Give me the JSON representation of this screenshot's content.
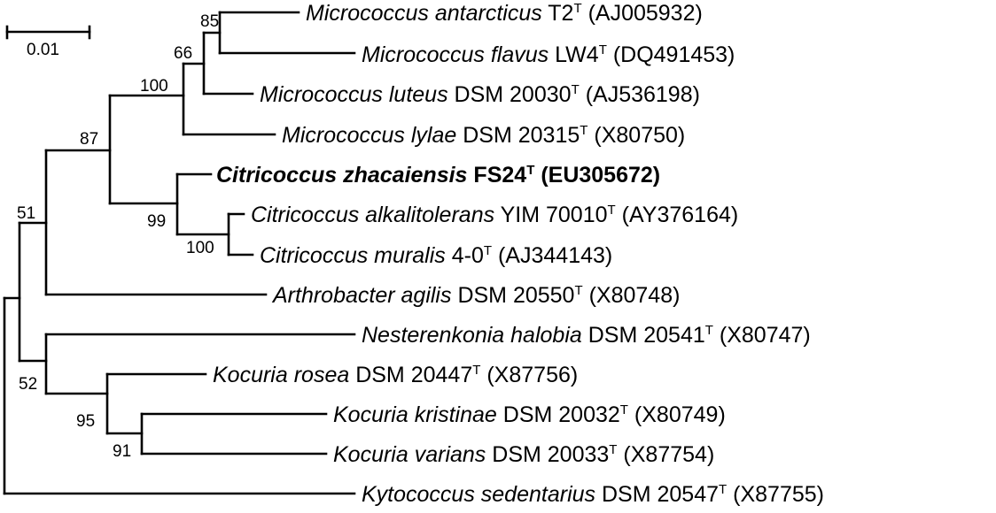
{
  "scale_bar": {
    "label": "0.01"
  },
  "bootstrap": {
    "n85": "85",
    "n66": "66",
    "n100_micro": "100",
    "n87": "87",
    "n99": "99",
    "n100_citri": "100",
    "n51": "51",
    "n52": "52",
    "n95": "95",
    "n91": "91"
  },
  "taxa": [
    {
      "genus_species": "Micrococcus antarcticus",
      "strain": "T2",
      "sup": "T",
      "accession": "(AJ005932)",
      "bold": false
    },
    {
      "genus_species": "Micrococcus flavus",
      "strain": "LW4",
      "sup": "T",
      "accession": "(DQ491453)",
      "bold": false
    },
    {
      "genus_species": "Micrococcus luteus",
      "strain": "DSM 20030",
      "sup": "T",
      "accession": "(AJ536198)",
      "bold": false
    },
    {
      "genus_species": "Micrococcus lylae",
      "strain": "DSM 20315",
      "sup": "T",
      "accession": "(X80750)",
      "bold": false
    },
    {
      "genus_species": "Citricoccus zhacaiensis",
      "strain": "FS24",
      "sup": "T",
      "accession": "(EU305672)",
      "bold": true
    },
    {
      "genus_species": "Citricoccus alkalitolerans",
      "strain": "YIM 70010",
      "sup": "T",
      "accession": "(AY376164)",
      "bold": false
    },
    {
      "genus_species": "Citricoccus muralis",
      "strain": "4-0",
      "sup": "T",
      "accession": "(AJ344143)",
      "bold": false
    },
    {
      "genus_species": "Arthrobacter agilis",
      "strain": "DSM 20550",
      "sup": "T",
      "accession": "(X80748)",
      "bold": false
    },
    {
      "genus_species": "Nesterenkonia halobia",
      "strain": "DSM 20541",
      "sup": "T",
      "accession": "(X80747)",
      "bold": false
    },
    {
      "genus_species": "Kocuria rosea",
      "strain": "DSM 20447",
      "sup": "T",
      "accession": "(X87756)",
      "bold": false
    },
    {
      "genus_species": "Kocuria kristinae",
      "strain": "DSM 20032",
      "sup": "T",
      "accession": "(X80749)",
      "bold": false
    },
    {
      "genus_species": "Kocuria varians",
      "strain": "DSM 20033",
      "sup": "T",
      "accession": "(X87754)",
      "bold": false
    },
    {
      "genus_species": "Kytococcus sedentarius",
      "strain": "DSM 20547",
      "sup": "T",
      "accession": "(X87755)",
      "bold": false
    }
  ]
}
